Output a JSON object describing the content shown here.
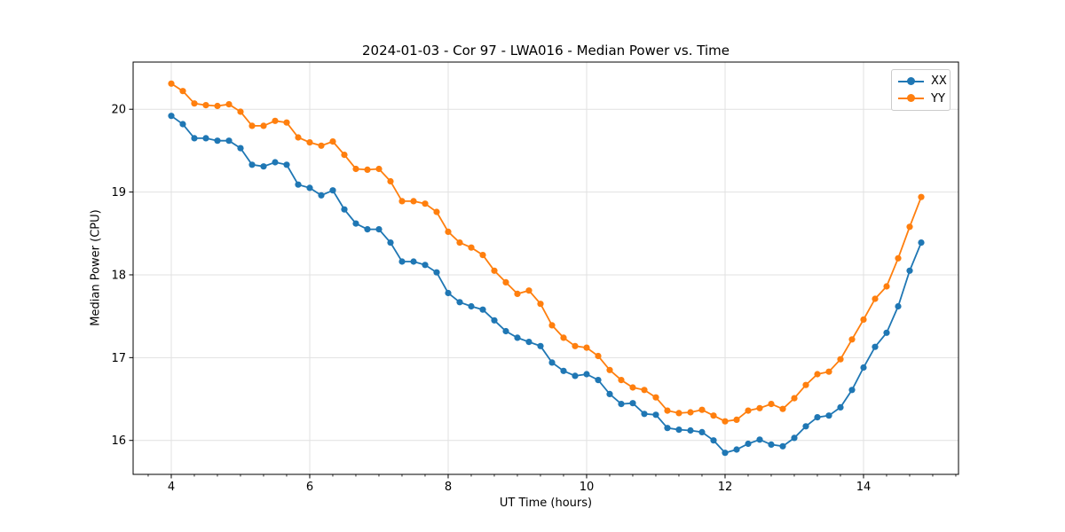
{
  "chart": {
    "title": "2024-01-03 - Cor 97 - LWA016 - Median Power vs. Time",
    "xlabel": "UT Time (hours)",
    "ylabel": "Median Power (CPU)",
    "legend": [
      {
        "label": "XX",
        "color": "#1f77b4"
      },
      {
        "label": "YY",
        "color": "#ff7f0e"
      }
    ]
  },
  "chart_data": {
    "type": "line",
    "title": "2024-01-03 - Cor 97 - LWA016 - Median Power vs. Time",
    "xlabel": "UT Time (hours)",
    "ylabel": "Median Power (CPU)",
    "xlim": [
      3.449,
      15.372
    ],
    "ylim": [
      15.59,
      20.57
    ],
    "x_major_ticks": [
      4,
      6,
      8,
      10,
      12,
      14
    ],
    "x_minor_tick_step": 0.33333,
    "y_major_ticks": [
      16,
      17,
      18,
      19,
      20
    ],
    "grid": true,
    "legend_position": "upper right",
    "marker": "o",
    "line_color_blue": "#1f77b4",
    "line_color_orange": "#ff7f0e",
    "grid_color": "#e1e1e1",
    "x": [
      4.0,
      4.167,
      4.333,
      4.5,
      4.667,
      4.833,
      5.0,
      5.167,
      5.333,
      5.5,
      5.667,
      5.833,
      6.0,
      6.167,
      6.333,
      6.5,
      6.667,
      6.833,
      7.0,
      7.167,
      7.333,
      7.5,
      7.667,
      7.833,
      8.0,
      8.167,
      8.333,
      8.5,
      8.667,
      8.833,
      9.0,
      9.167,
      9.333,
      9.5,
      9.667,
      9.833,
      10.0,
      10.167,
      10.333,
      10.5,
      10.667,
      10.833,
      11.0,
      11.167,
      11.333,
      11.5,
      11.667,
      11.833,
      12.0,
      12.167,
      12.333,
      12.5,
      12.667,
      12.833,
      13.0,
      13.167,
      13.333,
      13.5,
      13.667,
      13.833,
      14.0,
      14.167,
      14.333,
      14.5,
      14.667,
      14.833
    ],
    "series": [
      {
        "name": "XX",
        "color": "#1f77b4",
        "values": [
          19.92,
          19.82,
          19.65,
          19.65,
          19.62,
          19.62,
          19.53,
          19.33,
          19.31,
          19.36,
          19.33,
          19.09,
          19.05,
          18.96,
          19.02,
          18.79,
          18.62,
          18.55,
          18.55,
          18.39,
          18.16,
          18.16,
          18.12,
          18.03,
          17.78,
          17.67,
          17.62,
          17.58,
          17.45,
          17.32,
          17.24,
          17.19,
          17.14,
          16.94,
          16.84,
          16.78,
          16.8,
          16.73,
          16.56,
          16.44,
          16.45,
          16.32,
          16.31,
          16.15,
          16.13,
          16.12,
          16.1,
          16.0,
          15.85,
          15.89,
          15.96,
          16.01,
          15.95,
          15.93,
          16.03,
          16.17,
          16.28,
          16.3,
          16.4,
          16.61,
          16.88,
          17.13,
          17.3,
          17.62,
          18.05,
          18.39
        ]
      },
      {
        "name": "YY",
        "color": "#ff7f0e",
        "values": [
          20.31,
          20.22,
          20.07,
          20.05,
          20.04,
          20.06,
          19.97,
          19.8,
          19.8,
          19.86,
          19.84,
          19.66,
          19.6,
          19.56,
          19.61,
          19.45,
          19.28,
          19.27,
          19.28,
          19.13,
          18.89,
          18.89,
          18.86,
          18.76,
          18.52,
          18.39,
          18.33,
          18.24,
          18.05,
          17.91,
          17.77,
          17.81,
          17.65,
          17.39,
          17.24,
          17.14,
          17.12,
          17.02,
          16.85,
          16.73,
          16.64,
          16.61,
          16.52,
          16.36,
          16.33,
          16.34,
          16.37,
          16.3,
          16.23,
          16.25,
          16.36,
          16.39,
          16.44,
          16.38,
          16.51,
          16.67,
          16.8,
          16.83,
          16.98,
          17.22,
          17.46,
          17.71,
          17.86,
          18.2,
          18.58,
          18.94
        ]
      }
    ]
  }
}
